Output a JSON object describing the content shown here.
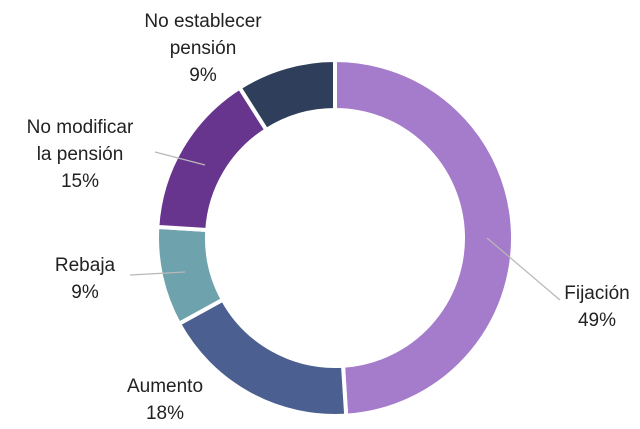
{
  "chart_data": {
    "type": "donut",
    "categories": [
      "Fijación",
      "Aumento",
      "Rebaja",
      "No modificar la pensión",
      "No establecer pensión"
    ],
    "values": [
      49,
      18,
      9,
      15,
      9
    ],
    "value_labels": [
      "49%",
      "18%",
      "9%",
      "15%",
      "9%"
    ],
    "colors": [
      "#a57bcb",
      "#4b6090",
      "#6ea2ad",
      "#67348e",
      "#2f3e5a"
    ]
  }
}
